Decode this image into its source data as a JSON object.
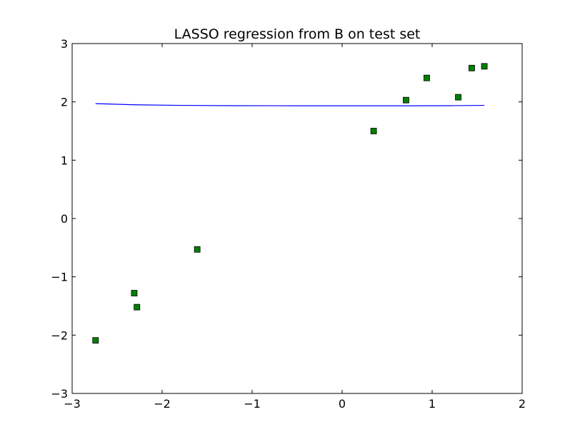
{
  "chart_data": {
    "type": "scatter",
    "title": "LASSO regression from B on test set",
    "xlabel": "",
    "ylabel": "",
    "xlim": [
      -3,
      2
    ],
    "ylim": [
      -3,
      3
    ],
    "x_ticks": [
      -3,
      -2,
      -1,
      0,
      1,
      2
    ],
    "y_ticks": [
      -3,
      -2,
      -1,
      0,
      1,
      2,
      3
    ],
    "x_tick_labels": [
      "−3",
      "−2",
      "−1",
      "0",
      "1",
      "2"
    ],
    "y_tick_labels": [
      "−3",
      "−2",
      "−1",
      "0",
      "1",
      "2",
      "3"
    ],
    "grid": false,
    "series": [
      {
        "type": "scatter",
        "marker": "square",
        "color": "#008000",
        "edge_color": "#000000",
        "points": [
          {
            "x": -2.74,
            "y": -2.09
          },
          {
            "x": -2.31,
            "y": -1.28
          },
          {
            "x": -2.28,
            "y": -1.52
          },
          {
            "x": -1.61,
            "y": -0.53
          },
          {
            "x": 0.35,
            "y": 1.5
          },
          {
            "x": 0.71,
            "y": 2.03
          },
          {
            "x": 0.94,
            "y": 2.41
          },
          {
            "x": 1.29,
            "y": 2.08
          },
          {
            "x": 1.44,
            "y": 2.58
          },
          {
            "x": 1.58,
            "y": 2.61
          }
        ]
      },
      {
        "type": "line",
        "color": "#0000ff",
        "points": [
          {
            "x": -2.74,
            "y": 1.97
          },
          {
            "x": -2.3,
            "y": 1.95
          },
          {
            "x": -1.8,
            "y": 1.94
          },
          {
            "x": -1.2,
            "y": 1.935
          },
          {
            "x": -0.5,
            "y": 1.933
          },
          {
            "x": 0.2,
            "y": 1.933
          },
          {
            "x": 0.8,
            "y": 1.933
          },
          {
            "x": 1.2,
            "y": 1.935
          },
          {
            "x": 1.58,
            "y": 1.94
          }
        ]
      }
    ]
  }
}
